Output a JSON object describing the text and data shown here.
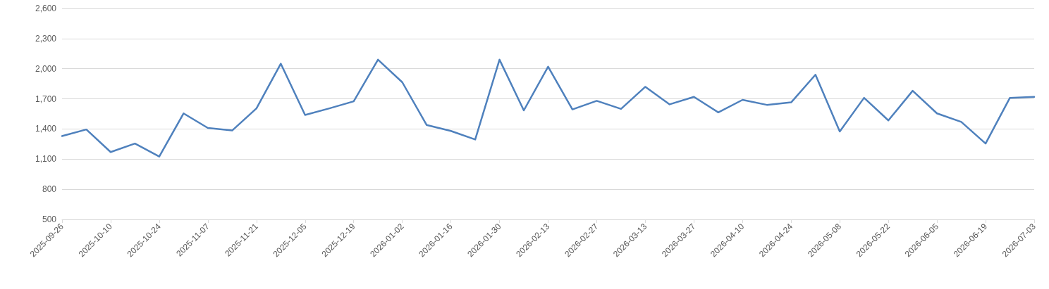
{
  "chart_data": {
    "type": "line",
    "categories": [
      "2025-09-26",
      null,
      "2025-10-10",
      null,
      "2025-10-24",
      null,
      "2025-11-07",
      null,
      "2025-11-21",
      null,
      "2025-12-05",
      null,
      "2025-12-19",
      null,
      "2026-01-02",
      null,
      "2026-01-16",
      null,
      "2026-01-30",
      null,
      "2026-02-13",
      null,
      "2026-02-27",
      null,
      "2026-03-13",
      null,
      "2026-03-27",
      null,
      "2026-04-10",
      null,
      "2026-04-24",
      null,
      "2026-05-08",
      null,
      "2026-05-22",
      null,
      "2026-06-05",
      null,
      "2026-06-19",
      null,
      "2026-07-03"
    ],
    "series": [
      {
        "color": "#4f81bd",
        "values": [
          1330,
          1395,
          1170,
          1255,
          1125,
          1555,
          1410,
          1385,
          1605,
          2050,
          1540,
          1605,
          1675,
          2090,
          1865,
          1440,
          1380,
          1295,
          2090,
          1585,
          2020,
          1595,
          1680,
          1600,
          1820,
          1645,
          1720,
          1565,
          1690,
          1640,
          1665,
          1940,
          1375,
          1710,
          1485,
          1780,
          1555,
          1470,
          1255,
          1710,
          1720
        ]
      }
    ],
    "ylim": [
      500,
      2600
    ],
    "yticks": [
      {
        "value": 500,
        "label": "500"
      },
      {
        "value": 800,
        "label": "800"
      },
      {
        "value": 1100,
        "label": "1,100"
      },
      {
        "value": 1400,
        "label": "1,400"
      },
      {
        "value": 1700,
        "label": "1,700"
      },
      {
        "value": 2000,
        "label": "2,000"
      },
      {
        "value": 2300,
        "label": "2,300"
      },
      {
        "value": 2600,
        "label": "2,600"
      }
    ],
    "grid": "y",
    "marker": "none",
    "line_style": "solid"
  }
}
